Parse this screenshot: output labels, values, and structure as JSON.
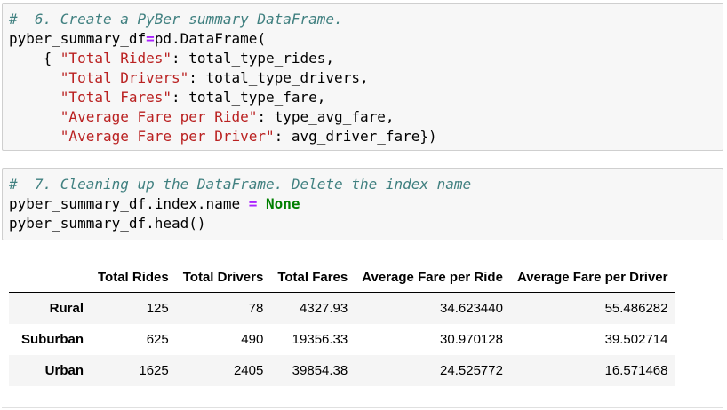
{
  "cells": [
    {
      "lines": [
        [
          {
            "t": "#  6. Create a PyBer summary DataFrame.",
            "c": "cm"
          }
        ],
        [
          {
            "t": "pyber_summary_df",
            "c": ""
          },
          {
            "t": "=",
            "c": "op"
          },
          {
            "t": "pd.DataFrame(",
            "c": ""
          }
        ],
        [
          {
            "t": "    { ",
            "c": ""
          },
          {
            "t": "\"Total Rides\"",
            "c": "st"
          },
          {
            "t": ": total_type_rides,",
            "c": ""
          }
        ],
        [
          {
            "t": "      ",
            "c": ""
          },
          {
            "t": "\"Total Drivers\"",
            "c": "st"
          },
          {
            "t": ": total_type_drivers,",
            "c": ""
          }
        ],
        [
          {
            "t": "      ",
            "c": ""
          },
          {
            "t": "\"Total Fares\"",
            "c": "st"
          },
          {
            "t": ": total_type_fare,",
            "c": ""
          }
        ],
        [
          {
            "t": "      ",
            "c": ""
          },
          {
            "t": "\"Average Fare per Ride\"",
            "c": "st"
          },
          {
            "t": ": type_avg_fare,",
            "c": ""
          }
        ],
        [
          {
            "t": "      ",
            "c": ""
          },
          {
            "t": "\"Average Fare per Driver\"",
            "c": "st"
          },
          {
            "t": ": avg_driver_fare})",
            "c": ""
          }
        ]
      ]
    },
    {
      "lines": [
        [
          {
            "t": "#  7. Cleaning up the DataFrame. Delete the index name",
            "c": "cm"
          }
        ],
        [
          {
            "t": "pyber_summary_df.index.name ",
            "c": ""
          },
          {
            "t": "=",
            "c": "op"
          },
          {
            "t": " ",
            "c": ""
          },
          {
            "t": "None",
            "c": "kw"
          }
        ],
        [
          {
            "t": "pyber_summary_df.head()",
            "c": ""
          }
        ]
      ]
    }
  ],
  "table": {
    "columns": [
      "",
      "Total Rides",
      "Total Drivers",
      "Total Fares",
      "Average Fare per Ride",
      "Average Fare per Driver"
    ],
    "rows": [
      [
        "Rural",
        "125",
        "78",
        "4327.93",
        "34.623440",
        "55.486282"
      ],
      [
        "Suburban",
        "625",
        "490",
        "19356.33",
        "30.970128",
        "39.502714"
      ],
      [
        "Urban",
        "1625",
        "2405",
        "39854.38",
        "24.525772",
        "16.571468"
      ]
    ]
  },
  "colors": {
    "comment": "#408080",
    "string": "#ba2121",
    "operator": "#aa22ff",
    "keyword": "#008000",
    "cell_background": "#f7f7f7"
  }
}
